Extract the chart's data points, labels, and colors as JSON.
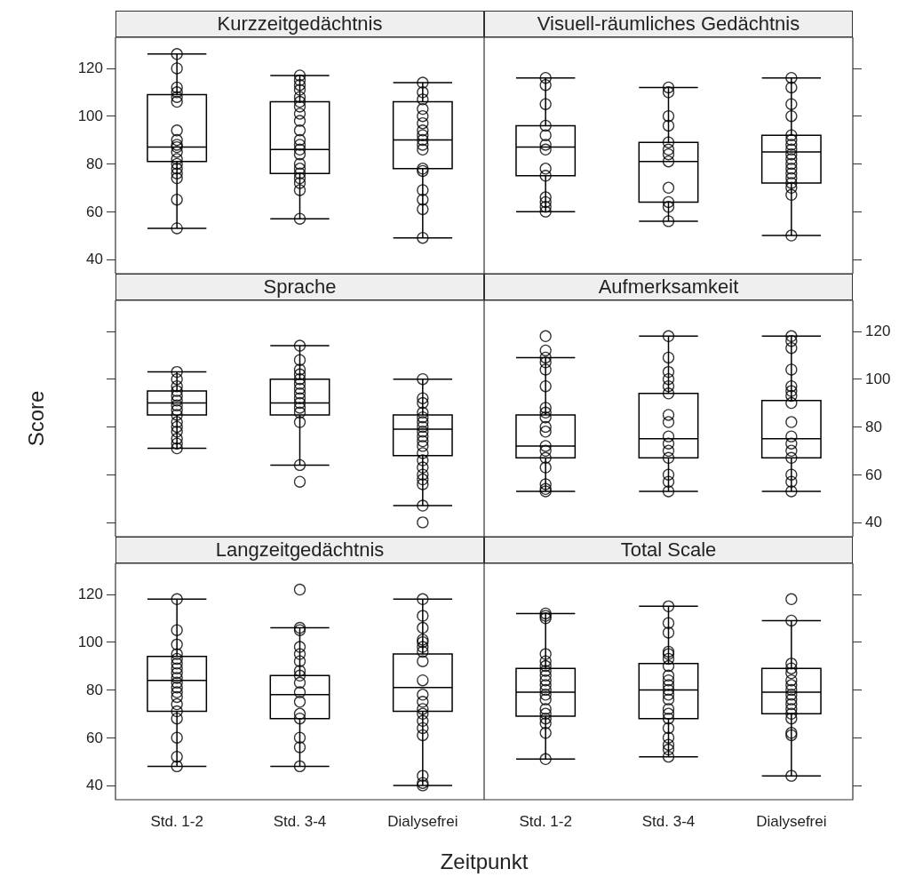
{
  "chart_data": [
    {
      "type": "box",
      "title": "Kurzzeitgedächtnis",
      "categories": [
        "Std. 1-2",
        "Std. 3-4",
        "Dialysefrei"
      ],
      "color": "#000000",
      "marker": "circle",
      "ylim": [
        34,
        133
      ],
      "yticks": [
        40,
        60,
        80,
        100,
        120
      ],
      "tick_labels": "y",
      "boxes": [
        {
          "low": 53,
          "q1": 81,
          "median": 87,
          "q3": 109,
          "high": 126
        },
        {
          "low": 57,
          "q1": 76,
          "median": 86,
          "q3": 106,
          "high": 117
        },
        {
          "low": 49,
          "q1": 78,
          "median": 90,
          "q3": 106,
          "high": 114
        }
      ],
      "series": [
        {
          "type": "scatter",
          "color": "#000000",
          "x": [
            "Std. 1-2",
            "Std. 1-2",
            "Std. 1-2",
            "Std. 1-2",
            "Std. 1-2",
            "Std. 1-2",
            "Std. 1-2",
            "Std. 1-2",
            "Std. 1-2",
            "Std. 1-2",
            "Std. 1-2",
            "Std. 1-2",
            "Std. 1-2",
            "Std. 1-2",
            "Std. 1-2",
            "Std. 1-2",
            "Std. 1-2",
            "Std. 1-2",
            "Std. 3-4",
            "Std. 3-4",
            "Std. 3-4",
            "Std. 3-4",
            "Std. 3-4",
            "Std. 3-4",
            "Std. 3-4",
            "Std. 3-4",
            "Std. 3-4",
            "Std. 3-4",
            "Std. 3-4",
            "Std. 3-4",
            "Std. 3-4",
            "Std. 3-4",
            "Std. 3-4",
            "Std. 3-4",
            "Std. 3-4",
            "Std. 3-4",
            "Std. 3-4",
            "Std. 3-4",
            "Std. 3-4",
            "Dialysefrei",
            "Dialysefrei",
            "Dialysefrei",
            "Dialysefrei",
            "Dialysefrei",
            "Dialysefrei",
            "Dialysefrei",
            "Dialysefrei",
            "Dialysefrei",
            "Dialysefrei",
            "Dialysefrei",
            "Dialysefrei",
            "Dialysefrei",
            "Dialysefrei",
            "Dialysefrei",
            "Dialysefrei",
            "Dialysefrei"
          ],
          "values": [
            126,
            120,
            112,
            110,
            108,
            106,
            94,
            90,
            88,
            87,
            85,
            82,
            80,
            78,
            76,
            74,
            65,
            53,
            117,
            115,
            113,
            111,
            108,
            106,
            104,
            101,
            98,
            94,
            90,
            88,
            86,
            84,
            80,
            78,
            76,
            74,
            72,
            69,
            57,
            114,
            110,
            107,
            103,
            100,
            97,
            94,
            92,
            90,
            88,
            86,
            78,
            77,
            69,
            65,
            61,
            49
          ]
        }
      ]
    },
    {
      "type": "box",
      "title": "Visuell-räumliches Gedächtnis",
      "categories": [
        "Std. 1-2",
        "Std. 3-4",
        "Dialysefrei"
      ],
      "color": "#000000",
      "marker": "circle",
      "ylim": [
        34,
        133
      ],
      "yticks": [
        40,
        60,
        80,
        100,
        120
      ],
      "tick_labels": false,
      "boxes": [
        {
          "low": 60,
          "q1": 75,
          "median": 87,
          "q3": 96,
          "high": 116
        },
        {
          "low": 56,
          "q1": 64,
          "median": 81,
          "q3": 89,
          "high": 112
        },
        {
          "low": 50,
          "q1": 72,
          "median": 85,
          "q3": 92,
          "high": 116
        }
      ],
      "series": [
        {
          "type": "scatter",
          "color": "#000000",
          "x": [
            "Std. 1-2",
            "Std. 1-2",
            "Std. 1-2",
            "Std. 1-2",
            "Std. 1-2",
            "Std. 1-2",
            "Std. 1-2",
            "Std. 1-2",
            "Std. 1-2",
            "Std. 1-2",
            "Std. 1-2",
            "Std. 1-2",
            "Std. 1-2",
            "Std. 3-4",
            "Std. 3-4",
            "Std. 3-4",
            "Std. 3-4",
            "Std. 3-4",
            "Std. 3-4",
            "Std. 3-4",
            "Std. 3-4",
            "Std. 3-4",
            "Std. 3-4",
            "Std. 3-4",
            "Std. 3-4",
            "Dialysefrei",
            "Dialysefrei",
            "Dialysefrei",
            "Dialysefrei",
            "Dialysefrei",
            "Dialysefrei",
            "Dialysefrei",
            "Dialysefrei",
            "Dialysefrei",
            "Dialysefrei",
            "Dialysefrei",
            "Dialysefrei",
            "Dialysefrei",
            "Dialysefrei",
            "Dialysefrei",
            "Dialysefrei",
            "Dialysefrei",
            "Dialysefrei"
          ],
          "values": [
            116,
            113,
            105,
            96,
            92,
            88,
            86,
            78,
            75,
            66,
            64,
            62,
            60,
            112,
            110,
            100,
            96,
            89,
            86,
            84,
            81,
            70,
            64,
            62,
            56,
            116,
            112,
            105,
            100,
            92,
            90,
            88,
            86,
            84,
            82,
            80,
            78,
            76,
            74,
            72,
            70,
            67,
            50
          ]
        }
      ]
    },
    {
      "type": "box",
      "title": "Sprache",
      "ylabel": "Score",
      "categories": [
        "Std. 1-2",
        "Std. 3-4",
        "Dialysefrei"
      ],
      "color": "#000000",
      "marker": "circle",
      "ylim": [
        34,
        133
      ],
      "yticks": [
        40,
        60,
        80,
        100,
        120
      ],
      "tick_labels": false,
      "boxes": [
        {
          "low": 71,
          "q1": 85,
          "median": 90,
          "q3": 95,
          "high": 103
        },
        {
          "low": 64,
          "q1": 85,
          "median": 90,
          "q3": 100,
          "high": 114,
          "outliers": [
            57
          ]
        },
        {
          "low": 47,
          "q1": 68,
          "median": 79,
          "q3": 85,
          "high": 100,
          "outliers": [
            40
          ]
        }
      ],
      "series": [
        {
          "type": "scatter",
          "color": "#000000",
          "x": [
            "Std. 1-2",
            "Std. 1-2",
            "Std. 1-2",
            "Std. 1-2",
            "Std. 1-2",
            "Std. 1-2",
            "Std. 1-2",
            "Std. 1-2",
            "Std. 1-2",
            "Std. 1-2",
            "Std. 1-2",
            "Std. 1-2",
            "Std. 1-2",
            "Std. 1-2",
            "Std. 1-2",
            "Std. 3-4",
            "Std. 3-4",
            "Std. 3-4",
            "Std. 3-4",
            "Std. 3-4",
            "Std. 3-4",
            "Std. 3-4",
            "Std. 3-4",
            "Std. 3-4",
            "Std. 3-4",
            "Std. 3-4",
            "Std. 3-4",
            "Std. 3-4",
            "Std. 3-4",
            "Dialysefrei",
            "Dialysefrei",
            "Dialysefrei",
            "Dialysefrei",
            "Dialysefrei",
            "Dialysefrei",
            "Dialysefrei",
            "Dialysefrei",
            "Dialysefrei",
            "Dialysefrei",
            "Dialysefrei",
            "Dialysefrei",
            "Dialysefrei",
            "Dialysefrei",
            "Dialysefrei",
            "Dialysefrei",
            "Dialysefrei",
            "Dialysefrei"
          ],
          "values": [
            103,
            100,
            97,
            95,
            93,
            91,
            89,
            87,
            85,
            82,
            80,
            78,
            75,
            73,
            71,
            114,
            108,
            104,
            102,
            100,
            98,
            96,
            94,
            92,
            90,
            88,
            86,
            82,
            64,
            100,
            92,
            90,
            86,
            84,
            82,
            80,
            78,
            76,
            74,
            72,
            69,
            66,
            63,
            60,
            58,
            56,
            47
          ]
        }
      ]
    },
    {
      "type": "box",
      "title": "Aufmerksamkeit",
      "categories": [
        "Std. 1-2",
        "Std. 3-4",
        "Dialysefrei"
      ],
      "color": "#000000",
      "marker": "circle",
      "ylim": [
        34,
        133
      ],
      "yticks": [
        40,
        60,
        80,
        100,
        120
      ],
      "tick_labels": "y",
      "boxes": [
        {
          "low": 53,
          "q1": 67,
          "median": 72,
          "q3": 85,
          "high": 109,
          "outliers": [
            118,
            112
          ]
        },
        {
          "low": 53,
          "q1": 67,
          "median": 75,
          "q3": 94,
          "high": 118
        },
        {
          "low": 53,
          "q1": 67,
          "median": 75,
          "q3": 91,
          "high": 118
        }
      ],
      "series": [
        {
          "type": "scatter",
          "color": "#000000",
          "x": [
            "Std. 1-2",
            "Std. 1-2",
            "Std. 1-2",
            "Std. 1-2",
            "Std. 1-2",
            "Std. 1-2",
            "Std. 1-2",
            "Std. 1-2",
            "Std. 1-2",
            "Std. 1-2",
            "Std. 1-2",
            "Std. 1-2",
            "Std. 1-2",
            "Std. 1-2",
            "Std. 1-2",
            "Std. 1-2",
            "Std. 3-4",
            "Std. 3-4",
            "Std. 3-4",
            "Std. 3-4",
            "Std. 3-4",
            "Std. 3-4",
            "Std. 3-4",
            "Std. 3-4",
            "Std. 3-4",
            "Std. 3-4",
            "Std. 3-4",
            "Std. 3-4",
            "Std. 3-4",
            "Std. 3-4",
            "Std. 3-4",
            "Dialysefrei",
            "Dialysefrei",
            "Dialysefrei",
            "Dialysefrei",
            "Dialysefrei",
            "Dialysefrei",
            "Dialysefrei",
            "Dialysefrei",
            "Dialysefrei",
            "Dialysefrei",
            "Dialysefrei",
            "Dialysefrei",
            "Dialysefrei",
            "Dialysefrei",
            "Dialysefrei",
            "Dialysefrei"
          ],
          "values": [
            109,
            107,
            104,
            97,
            88,
            86,
            84,
            80,
            78,
            72,
            70,
            67,
            63,
            56,
            54,
            53,
            118,
            109,
            103,
            100,
            97,
            94,
            85,
            82,
            76,
            73,
            70,
            67,
            60,
            57,
            53,
            118,
            116,
            113,
            104,
            97,
            95,
            93,
            90,
            82,
            76,
            73,
            70,
            67,
            60,
            57,
            53
          ]
        }
      ]
    },
    {
      "type": "box",
      "title": "Langzeitgedächtnis",
      "xlabel": "Zeitpunkt",
      "categories": [
        "Std. 1-2",
        "Std. 3-4",
        "Dialysefrei"
      ],
      "color": "#000000",
      "marker": "circle",
      "ylim": [
        34,
        133
      ],
      "yticks": [
        40,
        60,
        80,
        100,
        120
      ],
      "boxes": [
        {
          "low": 48,
          "q1": 71,
          "median": 84,
          "q3": 94,
          "high": 118
        },
        {
          "low": 48,
          "q1": 68,
          "median": 78,
          "q3": 86,
          "high": 106,
          "outliers": [
            122
          ]
        },
        {
          "low": 40,
          "q1": 71,
          "median": 81,
          "q3": 95,
          "high": 118
        }
      ],
      "series": [
        {
          "type": "scatter",
          "color": "#000000",
          "x": [
            "Std. 1-2",
            "Std. 1-2",
            "Std. 1-2",
            "Std. 1-2",
            "Std. 1-2",
            "Std. 1-2",
            "Std. 1-2",
            "Std. 1-2",
            "Std. 1-2",
            "Std. 1-2",
            "Std. 1-2",
            "Std. 1-2",
            "Std. 1-2",
            "Std. 1-2",
            "Std. 1-2",
            "Std. 1-2",
            "Std. 1-2",
            "Std. 1-2",
            "Std. 1-2",
            "Std. 3-4",
            "Std. 3-4",
            "Std. 3-4",
            "Std. 3-4",
            "Std. 3-4",
            "Std. 3-4",
            "Std. 3-4",
            "Std. 3-4",
            "Std. 3-4",
            "Std. 3-4",
            "Std. 3-4",
            "Std. 3-4",
            "Std. 3-4",
            "Std. 3-4",
            "Std. 3-4",
            "Dialysefrei",
            "Dialysefrei",
            "Dialysefrei",
            "Dialysefrei",
            "Dialysefrei",
            "Dialysefrei",
            "Dialysefrei",
            "Dialysefrei",
            "Dialysefrei",
            "Dialysefrei",
            "Dialysefrei",
            "Dialysefrei",
            "Dialysefrei",
            "Dialysefrei",
            "Dialysefrei",
            "Dialysefrei",
            "Dialysefrei",
            "Dialysefrei",
            "Dialysefrei"
          ],
          "values": [
            118,
            105,
            99,
            95,
            93,
            91,
            89,
            87,
            85,
            83,
            81,
            79,
            77,
            74,
            71,
            68,
            60,
            52,
            48,
            106,
            105,
            98,
            95,
            92,
            88,
            86,
            83,
            79,
            75,
            70,
            68,
            60,
            56,
            48,
            118,
            111,
            106,
            101,
            100,
            98,
            96,
            92,
            84,
            78,
            75,
            72,
            70,
            67,
            64,
            61,
            44,
            41,
            40
          ]
        }
      ]
    },
    {
      "type": "box",
      "title": "Total Scale",
      "categories": [
        "Std. 1-2",
        "Std. 3-4",
        "Dialysefrei"
      ],
      "color": "#000000",
      "marker": "circle",
      "ylim": [
        34,
        133
      ],
      "yticks": [
        40,
        60,
        80,
        100,
        120
      ],
      "tick_labels": "x",
      "boxes": [
        {
          "low": 51,
          "q1": 69,
          "median": 79,
          "q3": 89,
          "high": 112
        },
        {
          "low": 52,
          "q1": 68,
          "median": 80,
          "q3": 91,
          "high": 115
        },
        {
          "low": 44,
          "q1": 70,
          "median": 79,
          "q3": 89,
          "high": 109,
          "outliers": [
            118
          ]
        }
      ],
      "series": [
        {
          "type": "scatter",
          "color": "#000000",
          "x": [
            "Std. 1-2",
            "Std. 1-2",
            "Std. 1-2",
            "Std. 1-2",
            "Std. 1-2",
            "Std. 1-2",
            "Std. 1-2",
            "Std. 1-2",
            "Std. 1-2",
            "Std. 1-2",
            "Std. 1-2",
            "Std. 1-2",
            "Std. 1-2",
            "Std. 1-2",
            "Std. 1-2",
            "Std. 1-2",
            "Std. 1-2",
            "Std. 1-2",
            "Std. 1-2",
            "Std. 3-4",
            "Std. 3-4",
            "Std. 3-4",
            "Std. 3-4",
            "Std. 3-4",
            "Std. 3-4",
            "Std. 3-4",
            "Std. 3-4",
            "Std. 3-4",
            "Std. 3-4",
            "Std. 3-4",
            "Std. 3-4",
            "Std. 3-4",
            "Std. 3-4",
            "Std. 3-4",
            "Std. 3-4",
            "Std. 3-4",
            "Std. 3-4",
            "Std. 3-4",
            "Std. 3-4",
            "Std. 3-4",
            "Dialysefrei",
            "Dialysefrei",
            "Dialysefrei",
            "Dialysefrei",
            "Dialysefrei",
            "Dialysefrei",
            "Dialysefrei",
            "Dialysefrei",
            "Dialysefrei",
            "Dialysefrei",
            "Dialysefrei",
            "Dialysefrei",
            "Dialysefrei",
            "Dialysefrei",
            "Dialysefrei",
            "Dialysefrei"
          ],
          "values": [
            112,
            111,
            110,
            95,
            92,
            90,
            88,
            86,
            84,
            82,
            80,
            78,
            76,
            72,
            70,
            68,
            66,
            62,
            51,
            115,
            108,
            104,
            96,
            95,
            93,
            90,
            86,
            84,
            82,
            80,
            78,
            76,
            72,
            70,
            68,
            64,
            60,
            57,
            55,
            52,
            109,
            91,
            89,
            87,
            84,
            82,
            80,
            78,
            76,
            74,
            72,
            70,
            68,
            62,
            61,
            44
          ]
        }
      ]
    }
  ]
}
